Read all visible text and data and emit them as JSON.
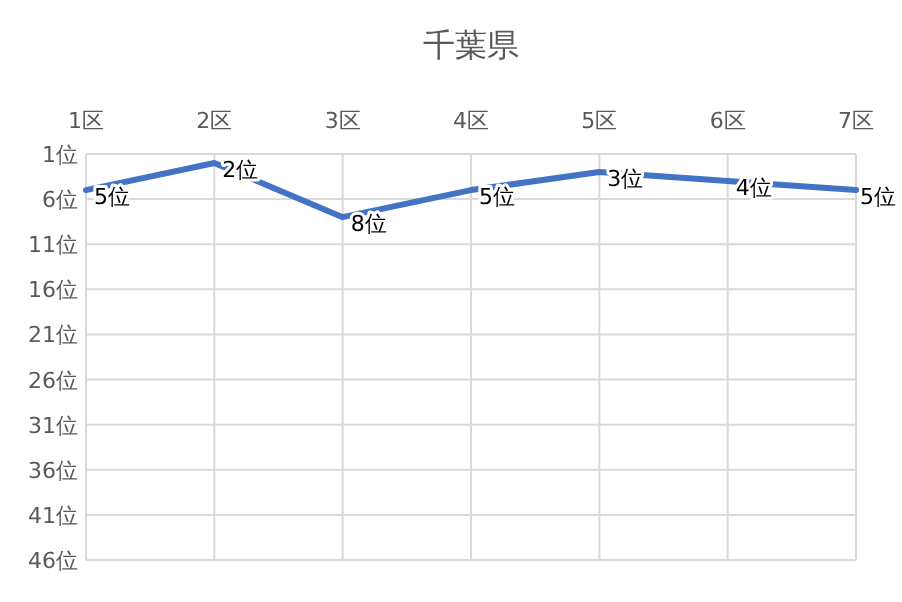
{
  "chart_data": {
    "type": "line",
    "title": "千葉県",
    "categories": [
      "1区",
      "2区",
      "3区",
      "4区",
      "5区",
      "6区",
      "7区"
    ],
    "series": [
      {
        "color": "#4472c4",
        "values": [
          5,
          2,
          8,
          5,
          3,
          4,
          5
        ],
        "value_labels": [
          "5位",
          "2位",
          "8位",
          "5位",
          "3位",
          "4位",
          "5位"
        ]
      }
    ],
    "ylim": [
      46,
      1
    ],
    "yticks": [
      {
        "value": 1,
        "label": "1位"
      },
      {
        "value": 6,
        "label": "6位"
      },
      {
        "value": 11,
        "label": "11位"
      },
      {
        "value": 16,
        "label": "16位"
      },
      {
        "value": 21,
        "label": "21位"
      },
      {
        "value": 26,
        "label": "26位"
      },
      {
        "value": 31,
        "label": "31位"
      },
      {
        "value": 36,
        "label": "36位"
      },
      {
        "value": 41,
        "label": "41位"
      },
      {
        "value": 46,
        "label": "46位"
      }
    ],
    "grid": true,
    "marker": "none",
    "line_style": "solid"
  }
}
